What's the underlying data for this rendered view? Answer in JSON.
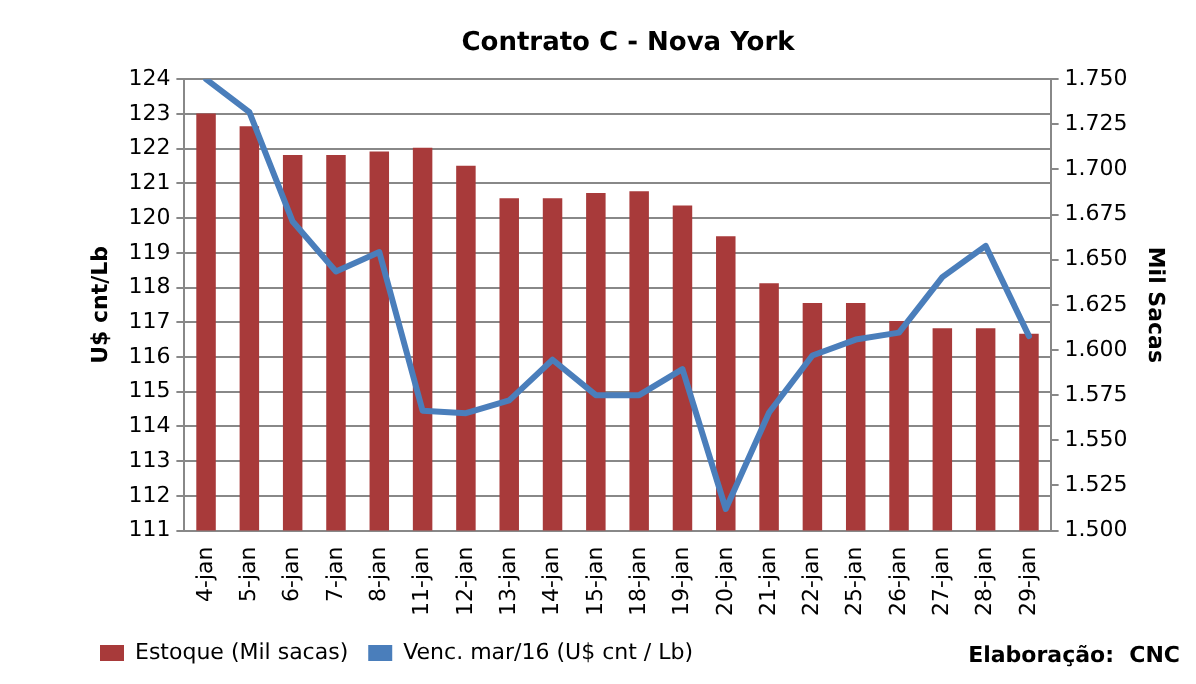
{
  "chart_data": {
    "type": "bar",
    "title": "Contrato C - Nova York",
    "ylabel": "U$ cnt/Lb",
    "y2label": "Mil Sacas",
    "categories": [
      "4-jan",
      "5-jan",
      "6-jan",
      "7-jan",
      "8-jan",
      "11-jan",
      "12-jan",
      "13-jan",
      "14-jan",
      "15-jan",
      "18-jan",
      "19-jan",
      "20-jan",
      "21-jan",
      "22-jan",
      "25-jan",
      "26-jan",
      "27-jan",
      "28-jan",
      "29-jan"
    ],
    "series": [
      {
        "name": "Estoque (Mil sacas)",
        "axis": "y2",
        "color": "#a83a3a",
        "values": [
          1731,
          1724,
          1708,
          1708,
          1710,
          1712,
          1702,
          1684,
          1684,
          1687,
          1688,
          1680,
          1663,
          1637,
          1626,
          1626,
          1616,
          1612,
          1612,
          1609
        ]
      },
      {
        "name": "Venc. mar/16 (U$ cnt / Lb)",
        "type": "line",
        "color": "#4a7ebb",
        "values": [
          124.0,
          123.05,
          119.9,
          118.46,
          119.02,
          114.45,
          114.38,
          114.75,
          115.92,
          114.9,
          114.9,
          115.65,
          111.62,
          114.4,
          116.04,
          116.5,
          116.7,
          118.3,
          119.2,
          116.6
        ]
      }
    ],
    "ylim": [
      111,
      124
    ],
    "yticks": [
      111,
      112,
      113,
      114,
      115,
      116,
      117,
      118,
      119,
      120,
      121,
      122,
      123,
      124
    ],
    "y2lim": [
      1500,
      1750
    ],
    "y2ticks": [
      {
        "value": 1500,
        "label": "1.500"
      },
      {
        "value": 1525,
        "label": "1.525"
      },
      {
        "value": 1550,
        "label": "1.550"
      },
      {
        "value": 1575,
        "label": "1.575"
      },
      {
        "value": 1600,
        "label": "1.600"
      },
      {
        "value": 1625,
        "label": "1.625"
      },
      {
        "value": 1650,
        "label": "1.650"
      },
      {
        "value": 1675,
        "label": "1.675"
      },
      {
        "value": 1700,
        "label": "1.700"
      },
      {
        "value": 1725,
        "label": "1.725"
      },
      {
        "value": 1750,
        "label": "1.750"
      }
    ],
    "grid": "y",
    "legend": "bottom",
    "marker": "none",
    "line_style": "solid",
    "annotations": [
      "Elaboração:  CNC"
    ]
  }
}
